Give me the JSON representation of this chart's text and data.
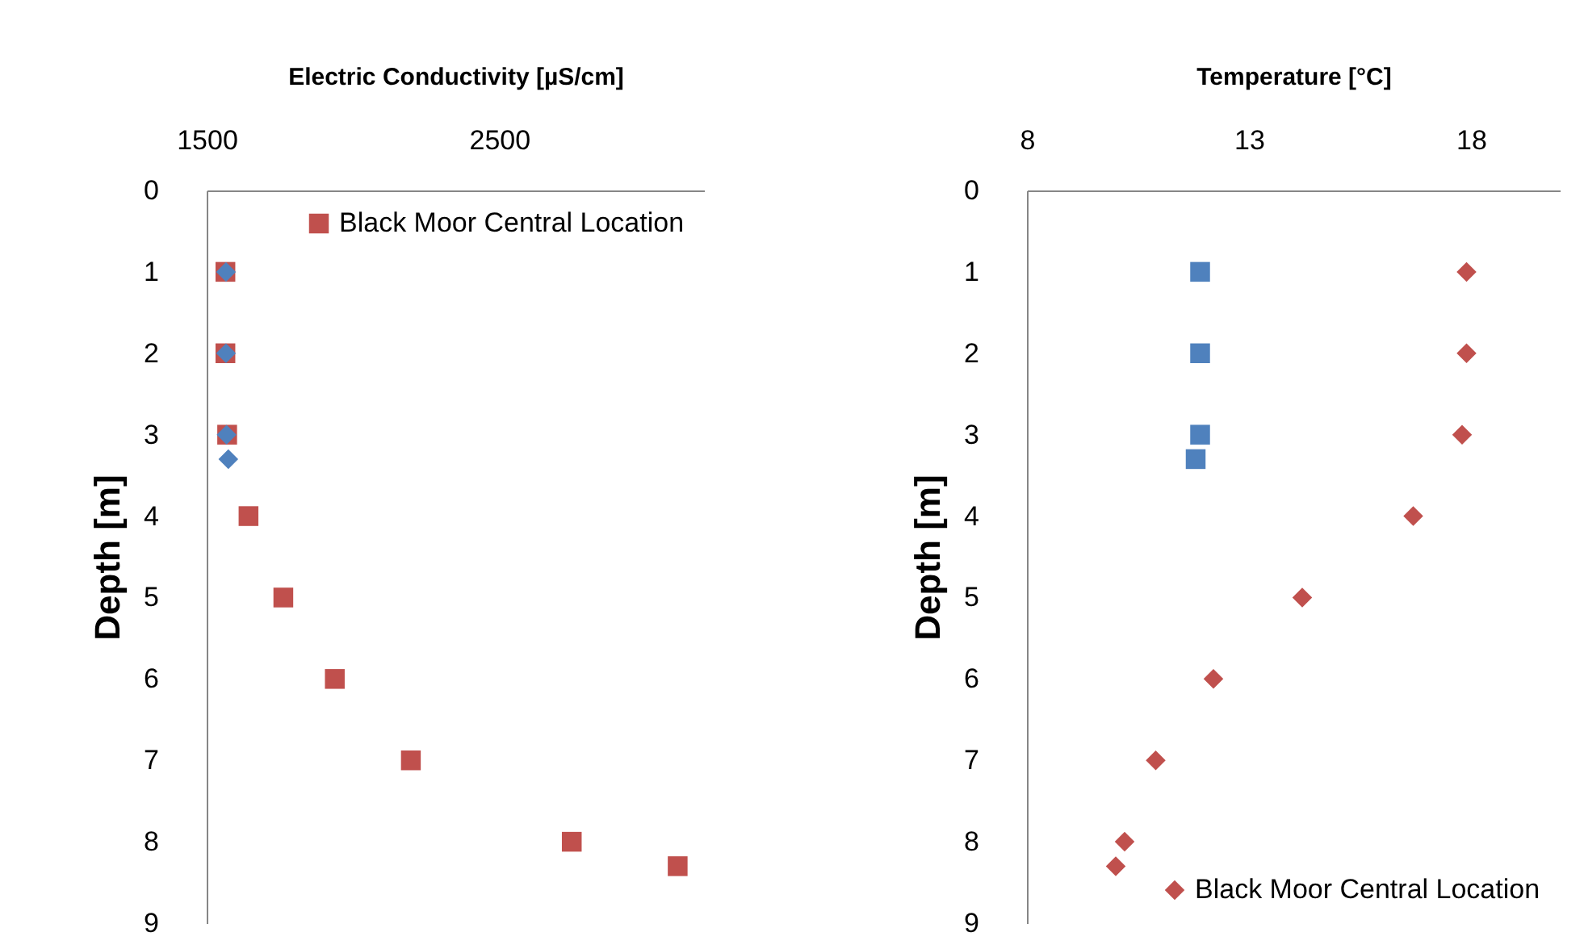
{
  "chart_data": [
    {
      "type": "scatter",
      "xlabel": "Electric Conductivity [µS/cm]",
      "ylabel": "Depth [m]",
      "xlim": [
        1500,
        3200
      ],
      "xticks": [
        1500,
        2500
      ],
      "ylim": [
        9,
        0
      ],
      "yticks": [
        0,
        1,
        2,
        3,
        4,
        5,
        6,
        7,
        8,
        9
      ],
      "legend": "top right",
      "series": [
        {
          "name": "Black Moor Central Location",
          "color": "#c0504d",
          "marker": "square",
          "x": [
            1564,
            1564,
            1570,
            1643,
            1762,
            1938,
            2198,
            2748,
            3110
          ],
          "values": [
            1,
            2,
            3,
            4,
            5,
            6,
            7,
            8,
            8.3
          ]
        },
        {
          "color": "#4f81bd",
          "marker": "diamond",
          "x": [
            1566,
            1566,
            1568,
            1574
          ],
          "values": [
            1,
            2,
            3,
            3.3
          ]
        }
      ]
    },
    {
      "type": "scatter",
      "xlabel": "Temperature [°C]",
      "ylabel": "Depth [m]",
      "xlim": [
        8,
        20
      ],
      "xticks": [
        8,
        13,
        18
      ],
      "ylim": [
        9,
        0
      ],
      "yticks": [
        0,
        1,
        2,
        3,
        4,
        5,
        6,
        7,
        8,
        9
      ],
      "legend": "bottom right",
      "series": [
        {
          "color": "#4f81bd",
          "marker": "square",
          "x": [
            11.9,
            11.9,
            11.9,
            11.8
          ],
          "values": [
            1,
            2,
            3,
            3.3
          ]
        },
        {
          "name": "Black Moor Central Location",
          "color": "#c0504d",
          "marker": "diamond",
          "x": [
            17.9,
            17.9,
            17.8,
            16.7,
            14.2,
            12.2,
            10.9,
            10.2,
            10.0
          ],
          "values": [
            1,
            2,
            3,
            4,
            5,
            6,
            7,
            8,
            8.3
          ]
        }
      ]
    }
  ]
}
